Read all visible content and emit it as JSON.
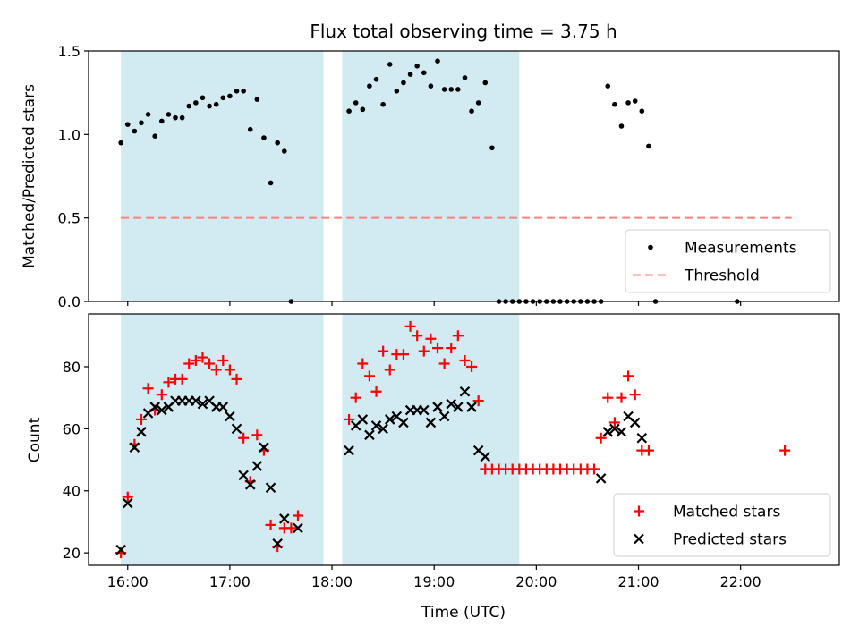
{
  "chart_data": [
    {
      "type": "scatter",
      "title": "Flux total observing time = 3.75 h",
      "xlabel": "",
      "ylabel": "Matched/Predicted stars",
      "xlim": [
        "15:37",
        "22:58"
      ],
      "ylim": [
        0,
        1.5
      ],
      "yticks": [
        0.0,
        0.5,
        1.0,
        1.5
      ],
      "ytick_labels": [
        "0.0",
        "0.5",
        "1.0",
        "1.5"
      ],
      "legend_position": "lower-right",
      "shaded_intervals": [
        [
          "15:56",
          "17:55"
        ],
        [
          "18:06",
          "19:50"
        ]
      ],
      "shade_color": "#add8e6",
      "threshold": {
        "name": "Threshold",
        "value": 0.5,
        "x_range": [
          "15:56",
          "22:30"
        ],
        "color": "#ff7f7f"
      },
      "series": [
        {
          "name": "Measurements",
          "color": "#000000",
          "marker": "dot",
          "points": [
            [
              "15:56",
              0.95
            ],
            [
              "16:00",
              1.06
            ],
            [
              "16:04",
              1.02
            ],
            [
              "16:08",
              1.07
            ],
            [
              "16:12",
              1.12
            ],
            [
              "16:16",
              0.99
            ],
            [
              "16:20",
              1.08
            ],
            [
              "16:24",
              1.12
            ],
            [
              "16:28",
              1.1
            ],
            [
              "16:32",
              1.1
            ],
            [
              "16:36",
              1.17
            ],
            [
              "16:40",
              1.19
            ],
            [
              "16:44",
              1.22
            ],
            [
              "16:48",
              1.17
            ],
            [
              "16:52",
              1.18
            ],
            [
              "16:56",
              1.22
            ],
            [
              "17:00",
              1.23
            ],
            [
              "17:04",
              1.26
            ],
            [
              "17:08",
              1.26
            ],
            [
              "17:12",
              1.03
            ],
            [
              "17:16",
              1.21
            ],
            [
              "17:20",
              0.98
            ],
            [
              "17:24",
              0.71
            ],
            [
              "17:28",
              0.95
            ],
            [
              "17:32",
              0.9
            ],
            [
              "17:36",
              0.0
            ],
            [
              "18:10",
              1.14
            ],
            [
              "18:14",
              1.19
            ],
            [
              "18:18",
              1.15
            ],
            [
              "18:22",
              1.29
            ],
            [
              "18:26",
              1.33
            ],
            [
              "18:30",
              1.18
            ],
            [
              "18:34",
              1.42
            ],
            [
              "18:38",
              1.26
            ],
            [
              "18:42",
              1.31
            ],
            [
              "18:46",
              1.36
            ],
            [
              "18:50",
              1.41
            ],
            [
              "18:54",
              1.37
            ],
            [
              "18:58",
              1.29
            ],
            [
              "19:02",
              1.44
            ],
            [
              "19:06",
              1.27
            ],
            [
              "19:10",
              1.27
            ],
            [
              "19:14",
              1.27
            ],
            [
              "19:18",
              1.34
            ],
            [
              "19:22",
              1.14
            ],
            [
              "19:26",
              1.19
            ],
            [
              "19:30",
              1.31
            ],
            [
              "19:34",
              0.92
            ],
            [
              "19:38",
              0.0
            ],
            [
              "19:42",
              0.0
            ],
            [
              "19:46",
              0.0
            ],
            [
              "19:50",
              0.0
            ],
            [
              "19:54",
              0.0
            ],
            [
              "19:58",
              0.0
            ],
            [
              "20:02",
              0.0
            ],
            [
              "20:06",
              0.0
            ],
            [
              "20:10",
              0.0
            ],
            [
              "20:14",
              0.0
            ],
            [
              "20:18",
              0.0
            ],
            [
              "20:22",
              0.0
            ],
            [
              "20:26",
              0.0
            ],
            [
              "20:30",
              0.0
            ],
            [
              "20:34",
              0.0
            ],
            [
              "20:38",
              0.0
            ],
            [
              "20:42",
              1.29
            ],
            [
              "20:46",
              1.18
            ],
            [
              "20:50",
              1.05
            ],
            [
              "20:54",
              1.19
            ],
            [
              "20:58",
              1.2
            ],
            [
              "21:02",
              1.14
            ],
            [
              "21:06",
              0.93
            ],
            [
              "21:10",
              0.0
            ],
            [
              "21:58",
              0.0
            ]
          ]
        }
      ]
    },
    {
      "type": "scatter",
      "title": "",
      "xlabel": "Time (UTC)",
      "ylabel": "Count",
      "xlim": [
        "15:37",
        "22:58"
      ],
      "ylim": [
        16,
        97
      ],
      "yticks": [
        20,
        40,
        60,
        80
      ],
      "ytick_labels": [
        "20",
        "40",
        "60",
        "80"
      ],
      "xticks": [
        "16:00",
        "17:00",
        "18:00",
        "19:00",
        "20:00",
        "21:00",
        "22:00"
      ],
      "xtick_labels": [
        "16:00",
        "17:00",
        "18:00",
        "19:00",
        "20:00",
        "21:00",
        "22:00"
      ],
      "legend_position": "lower-right",
      "shaded_intervals": [
        [
          "15:56",
          "17:55"
        ],
        [
          "18:06",
          "19:50"
        ]
      ],
      "shade_color": "#add8e6",
      "series": [
        {
          "name": "Matched stars",
          "color": "#ff0000",
          "marker": "plus",
          "points": [
            [
              "15:56",
              20
            ],
            [
              "16:00",
              38
            ],
            [
              "16:04",
              55
            ],
            [
              "16:08",
              63
            ],
            [
              "16:12",
              73
            ],
            [
              "16:16",
              66
            ],
            [
              "16:20",
              71
            ],
            [
              "16:24",
              75
            ],
            [
              "16:28",
              76
            ],
            [
              "16:32",
              76
            ],
            [
              "16:36",
              81
            ],
            [
              "16:40",
              82
            ],
            [
              "16:44",
              83
            ],
            [
              "16:48",
              81
            ],
            [
              "16:52",
              79
            ],
            [
              "16:56",
              82
            ],
            [
              "17:00",
              79
            ],
            [
              "17:04",
              76
            ],
            [
              "17:08",
              57
            ],
            [
              "17:12",
              43
            ],
            [
              "17:16",
              58
            ],
            [
              "17:20",
              53
            ],
            [
              "17:24",
              29
            ],
            [
              "17:28",
              22
            ],
            [
              "17:32",
              28
            ],
            [
              "17:36",
              28
            ],
            [
              "17:40",
              32
            ],
            [
              "18:10",
              63
            ],
            [
              "18:14",
              70
            ],
            [
              "18:18",
              81
            ],
            [
              "18:22",
              77
            ],
            [
              "18:26",
              72
            ],
            [
              "18:30",
              85
            ],
            [
              "18:34",
              79
            ],
            [
              "18:38",
              84
            ],
            [
              "18:42",
              84
            ],
            [
              "18:46",
              93
            ],
            [
              "18:50",
              90
            ],
            [
              "18:54",
              85
            ],
            [
              "18:58",
              89
            ],
            [
              "19:02",
              86
            ],
            [
              "19:06",
              81
            ],
            [
              "19:10",
              86
            ],
            [
              "19:14",
              90
            ],
            [
              "19:18",
              82
            ],
            [
              "19:22",
              80
            ],
            [
              "19:26",
              69
            ],
            [
              "19:30",
              47
            ],
            [
              "19:34",
              47
            ],
            [
              "19:38",
              47
            ],
            [
              "19:42",
              47
            ],
            [
              "19:46",
              47
            ],
            [
              "19:50",
              47
            ],
            [
              "19:54",
              47
            ],
            [
              "19:58",
              47
            ],
            [
              "20:02",
              47
            ],
            [
              "20:06",
              47
            ],
            [
              "20:10",
              47
            ],
            [
              "20:14",
              47
            ],
            [
              "20:18",
              47
            ],
            [
              "20:22",
              47
            ],
            [
              "20:26",
              47
            ],
            [
              "20:30",
              47
            ],
            [
              "20:34",
              47
            ],
            [
              "20:38",
              57
            ],
            [
              "20:42",
              70
            ],
            [
              "20:46",
              62
            ],
            [
              "20:50",
              70
            ],
            [
              "20:54",
              77
            ],
            [
              "20:58",
              71
            ],
            [
              "21:02",
              53
            ],
            [
              "21:06",
              53
            ],
            [
              "22:26",
              53
            ]
          ]
        },
        {
          "name": "Predicted stars",
          "color": "#000000",
          "marker": "x",
          "points": [
            [
              "15:56",
              21
            ],
            [
              "16:00",
              36
            ],
            [
              "16:04",
              54
            ],
            [
              "16:08",
              59
            ],
            [
              "16:12",
              65
            ],
            [
              "16:16",
              67
            ],
            [
              "16:20",
              66
            ],
            [
              "16:24",
              67
            ],
            [
              "16:28",
              69
            ],
            [
              "16:32",
              69
            ],
            [
              "16:36",
              69
            ],
            [
              "16:40",
              69
            ],
            [
              "16:44",
              68
            ],
            [
              "16:48",
              69
            ],
            [
              "16:52",
              67
            ],
            [
              "16:56",
              67
            ],
            [
              "17:00",
              64
            ],
            [
              "17:04",
              60
            ],
            [
              "17:08",
              45
            ],
            [
              "17:12",
              42
            ],
            [
              "17:16",
              48
            ],
            [
              "17:20",
              54
            ],
            [
              "17:24",
              41
            ],
            [
              "17:28",
              23
            ],
            [
              "17:32",
              31
            ],
            [
              "17:40",
              28
            ],
            [
              "18:10",
              53
            ],
            [
              "18:14",
              61
            ],
            [
              "18:18",
              63
            ],
            [
              "18:22",
              58
            ],
            [
              "18:26",
              61
            ],
            [
              "18:30",
              60
            ],
            [
              "18:34",
              63
            ],
            [
              "18:38",
              64
            ],
            [
              "18:42",
              62
            ],
            [
              "18:46",
              66
            ],
            [
              "18:50",
              66
            ],
            [
              "18:54",
              66
            ],
            [
              "18:58",
              62
            ],
            [
              "19:02",
              67
            ],
            [
              "19:06",
              64
            ],
            [
              "19:10",
              68
            ],
            [
              "19:14",
              67
            ],
            [
              "19:18",
              72
            ],
            [
              "19:22",
              67
            ],
            [
              "19:26",
              53
            ],
            [
              "19:30",
              51
            ],
            [
              "20:38",
              44
            ],
            [
              "20:42",
              59
            ],
            [
              "20:46",
              60
            ],
            [
              "20:50",
              59
            ],
            [
              "20:54",
              64
            ],
            [
              "20:58",
              62
            ],
            [
              "21:02",
              57
            ]
          ]
        }
      ]
    }
  ]
}
